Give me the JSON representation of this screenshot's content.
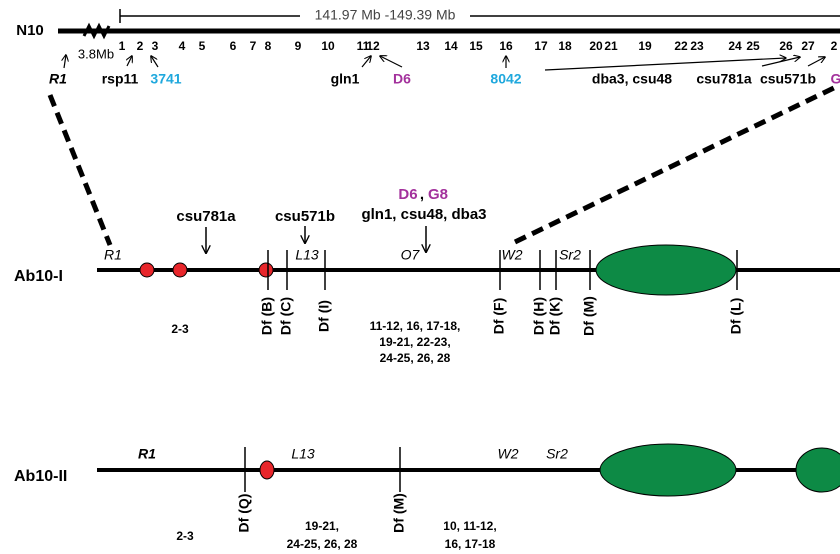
{
  "map": {
    "chromosome": "N10",
    "range": "141.97 Mb -149.39 Mb",
    "distance": "3.8Mb",
    "markers": [
      "1",
      "2",
      "3",
      "4",
      "5",
      "6",
      "7",
      "8",
      "9",
      "10",
      "11",
      "12",
      "13",
      "14",
      "15",
      "16",
      "17",
      "18",
      "20",
      "21",
      "19",
      "22",
      "23",
      "24",
      "25",
      "26",
      "27",
      "2"
    ],
    "labels": [
      "R1",
      "rsp11",
      "3741",
      "gln1",
      "D6",
      "8042",
      "dba3, csu48",
      "csu781a",
      "csu571b",
      "G"
    ]
  },
  "ab10_i": {
    "name": "Ab10-I",
    "probes": [
      "csu781a",
      "csu571b"
    ],
    "linked_markers": [
      "D6",
      "G8"
    ],
    "linked_separator": ",",
    "linked_probes": "gln1, csu48, dba3",
    "regions": [
      "R1",
      "L13",
      "O7",
      "W2",
      "Sr2"
    ],
    "deficiencies": [
      "Df (B)",
      "Df (C)",
      "Df (I)",
      "Df (F)",
      "Df (H)",
      "Df (K)",
      "Df (M)",
      "Df (L)"
    ],
    "intervals": [
      "2-3",
      "11-12, 16, 17-18,",
      "19-21, 22-23,",
      "24-25, 26, 28"
    ]
  },
  "ab10_ii": {
    "name": "Ab10-II",
    "regions": [
      "R1",
      "L13",
      "W2",
      "Sr2"
    ],
    "deficiencies": [
      "Df (Q)",
      "Df (M)"
    ],
    "intervals": [
      "2-3",
      "19-21,",
      "24-25, 26, 28",
      "10, 11-12,",
      "16, 17-18"
    ]
  }
}
